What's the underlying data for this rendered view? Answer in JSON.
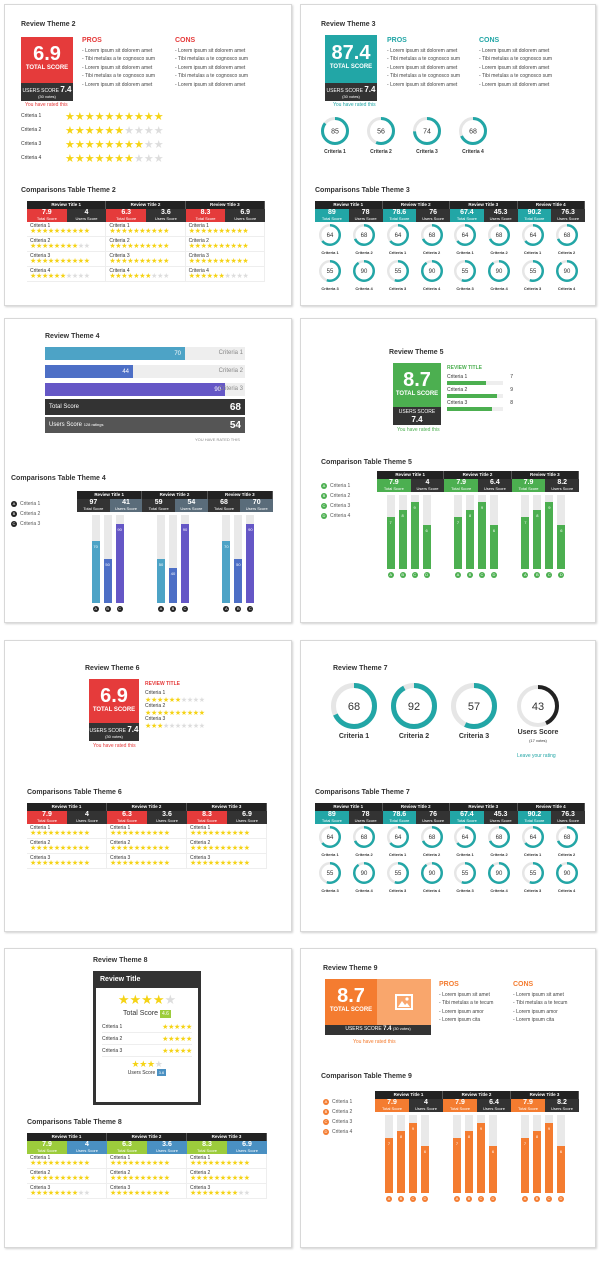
{
  "lorem": "- Lorem ipsum sit dolorem amet",
  "theme2": {
    "title": "Review Theme 2",
    "score": "6.9",
    "score_label": "TOTAL SCORE",
    "users_label": "USERS SCORE",
    "users_score": "7.4",
    "votes": "(30 votes)",
    "rated": "You have rated this",
    "pros_title": "PROS",
    "cons_title": "CONS",
    "pros": [
      "Lorem ipsum sit dolorem amet",
      "Tibi metulas a te cognosco sum",
      "Lorem ipsum sit dolorem amet",
      "Tibi metulas a te cognosco sum",
      "Lorem ipsum sit dolorem amet"
    ],
    "cons": [
      "Lorem ipsum sit dolorem amet",
      "Tibi metulas a te cognosco sum",
      "Lorem ipsum sit dolorem amet",
      "Tibi metulas a te cognosco sum",
      "Lorem ipsum sit dolorem amet"
    ],
    "criteria": [
      {
        "label": "Criteria 1",
        "stars": 10
      },
      {
        "label": "Criteria 2",
        "stars": 6
      },
      {
        "label": "Criteria 3",
        "stars": 8
      },
      {
        "label": "Criteria 4",
        "stars": 7
      }
    ],
    "comp_title": "Comparisons Table Theme 2",
    "accent": "#e53b3b"
  },
  "theme3": {
    "title": "Review Theme 3",
    "score": "87.4",
    "score_label": "TOTAL SCORE",
    "users_label": "USERS SCORE",
    "users_score": "7.4",
    "votes": "(30 votes)",
    "rated": "You have rated this",
    "pros_title": "PROS",
    "cons_title": "CONS",
    "pros": [
      "Lorem ipsum sit dolorem amet",
      "Tibi metulas a te cognosco sum",
      "Lorem ipsum sit dolorem amet",
      "Tibi metulas a te cognosco sum",
      "Lorem ipsum sit dolorem amet"
    ],
    "cons": [
      "Lorem ipsum sit dolorem amet",
      "Tibi metulas a te cognosco sum",
      "Lorem ipsum sit dolorem amet",
      "Tibi metulas a te cognosco sum",
      "Lorem ipsum sit dolorem amet"
    ],
    "rings": [
      {
        "value": "85",
        "label": "Criteria 1"
      },
      {
        "value": "56",
        "label": "Criteria 2"
      },
      {
        "value": "74",
        "label": "Criteria 3"
      },
      {
        "value": "68",
        "label": "Criteria 4"
      }
    ],
    "comp_title": "Comparisons Table Theme 3",
    "accent": "#22a6a6"
  },
  "comp_headers": [
    "Review Title 1",
    "Review Title 2",
    "Review Title 3"
  ],
  "comp_headers4": [
    "Review Title 1",
    "Review Title 2",
    "Review Title 3",
    "Review Title 4"
  ],
  "total_score": "Total Score",
  "users_score": "Users Score",
  "comp2_scores": [
    [
      "7.9",
      "4"
    ],
    [
      "6.3",
      "3.6"
    ],
    [
      "8.3",
      "6.9"
    ]
  ],
  "comp3_scores": [
    [
      "89",
      "78"
    ],
    [
      "78.6",
      "76"
    ],
    [
      "67.4",
      "45.3"
    ],
    [
      "90.2",
      "76.3"
    ]
  ],
  "comp3_rings": [
    [
      "64",
      "68",
      "55",
      "90"
    ],
    [
      "64",
      "68",
      "55",
      "90"
    ],
    [
      "64",
      "68",
      "55",
      "90"
    ],
    [
      "64",
      "68",
      "55",
      "90"
    ]
  ],
  "crit_labels": [
    "Criteria 1",
    "Criteria 2",
    "Criteria 3",
    "Criteria 4"
  ],
  "theme4": {
    "title": "Review Theme 4",
    "bars": [
      {
        "value": "70",
        "label": "Criteria 1",
        "color": "#4da3c6"
      },
      {
        "value": "44",
        "label": "Criteria 2",
        "color": "#4d6fc6"
      },
      {
        "value": "90",
        "label": "Criteria 3",
        "color": "#6557c6"
      }
    ],
    "total_label": "Total Score",
    "total": "68",
    "users_label": "Users Score",
    "ratings": "128  ratings",
    "users": "54",
    "rated": "YOU HAVE RATED THIS",
    "comp_title": "Comparisons Table Theme 4",
    "comp_scores": [
      [
        "97",
        "41"
      ],
      [
        "59",
        "54"
      ],
      [
        "68",
        "70"
      ]
    ],
    "bar_values": [
      [
        "70",
        "50",
        "90"
      ],
      [
        "50",
        "40",
        "90"
      ],
      [
        "70",
        "50",
        "90"
      ]
    ]
  },
  "theme5": {
    "title": "Review Theme 5",
    "score": "8.7",
    "score_label": "TOTAL SCORE",
    "users_label": "USERS SCORE",
    "users_score": "7.4",
    "votes": "(30 votes)",
    "rated": "You have rated this",
    "review_title": "REVIEW TITLE",
    "crit": [
      {
        "label": "Criteria 1",
        "value": "7"
      },
      {
        "label": "Criteria 2",
        "value": "9"
      },
      {
        "label": "Criteria 3",
        "value": "8"
      }
    ],
    "comp_title": "Comparison Table Theme 5",
    "comp_scores": [
      [
        "7.9",
        "4"
      ],
      [
        "7.9",
        "6.4"
      ],
      [
        "7.9",
        "8.2"
      ]
    ],
    "bar_values": [
      [
        "7",
        "8",
        "9",
        "6"
      ],
      [
        "7",
        "8",
        "9",
        "6"
      ],
      [
        "7",
        "8",
        "9",
        "6"
      ]
    ]
  },
  "theme6": {
    "title": "Review Theme 6",
    "score": "6.9",
    "score_label": "TOTAL SCORE",
    "users_label": "USERS SCORE",
    "users_score": "7.4",
    "votes": "(30 votes)",
    "rated": "You have rated this",
    "review_title": "REVIEW TITLE",
    "crit": [
      {
        "label": "Criteria 1",
        "stars": 6
      },
      {
        "label": "Criteria 2",
        "stars": 8
      },
      {
        "label": "Criteria 3",
        "stars": 4
      }
    ],
    "comp_title": "Comparisons Table Theme 6"
  },
  "theme7": {
    "title": "Review Theme 7",
    "rings": [
      {
        "value": "68",
        "label": "Criteria 1"
      },
      {
        "value": "92",
        "label": "Criteria 2"
      },
      {
        "value": "57",
        "label": "Criteria 3"
      }
    ],
    "users_value": "43",
    "users_label": "Users Score",
    "users_votes": "(17 votes)",
    "leave": "Leave  your rating",
    "comp_title": "Comparisons Table Theme 7"
  },
  "theme8": {
    "title": "Review Theme 8",
    "widget_title": "Review Title",
    "total_label": "Total Score",
    "total": "4.6",
    "crit": [
      "Criteria 1",
      "Criteria 2",
      "Criteria 3"
    ],
    "users_label": "Users Score",
    "users": "3.6",
    "comp_title": "Comparisons Table Theme 8",
    "comp_scores": [
      [
        "7.9",
        "4"
      ],
      [
        "6.3",
        "3.6"
      ],
      [
        "8.3",
        "6.9"
      ]
    ]
  },
  "theme9": {
    "title": "Review Theme 9",
    "score": "8.7",
    "score_label": "TOTAL SCORE",
    "users_label": "USERS SCORE",
    "users_score": "7.4",
    "votes": "(30 votes)",
    "rated": "You have rated this",
    "pros_title": "PROS",
    "cons_title": "CONS",
    "pros": [
      "Lorem ipsum sit amet",
      "Tibi metulas a te tecum",
      "Lorem ipsum amor",
      "Lorem ipsum cita"
    ],
    "cons": [
      "Lorem ipsum sit amet",
      "Tibi metulas a te tecum",
      "Lorem ipsum amor",
      "Lorem ipsum cita"
    ],
    "comp_title": "Comparison Table Theme 9",
    "comp_scores": [
      [
        "7.9",
        "4"
      ],
      [
        "7.9",
        "6.4"
      ],
      [
        "7.9",
        "8.2"
      ]
    ],
    "bar_values": [
      [
        "7",
        "8",
        "9",
        "6"
      ],
      [
        "7",
        "8",
        "9",
        "6"
      ],
      [
        "7",
        "8",
        "9",
        "6"
      ]
    ]
  }
}
